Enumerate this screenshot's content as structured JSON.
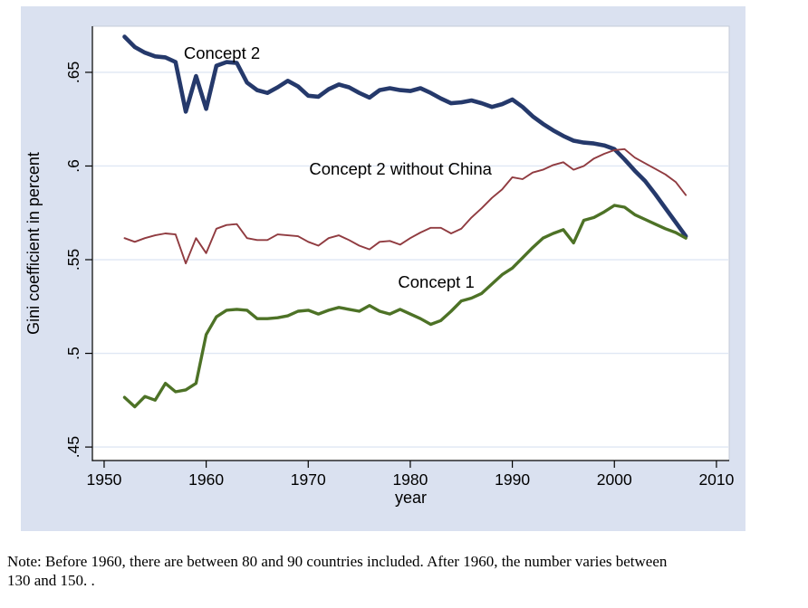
{
  "chart_data": {
    "type": "line",
    "title": "",
    "xlabel": "year",
    "ylabel": "Gini coefficient in percent",
    "x_ticks": [
      1950,
      1960,
      1970,
      1980,
      1990,
      2000,
      2010
    ],
    "x_tick_labels": [
      "1950",
      "1960",
      "1970",
      "1980",
      "1990",
      "2000",
      "2010"
    ],
    "y_tick_values": [
      0.45,
      0.5,
      0.55,
      0.6,
      0.65
    ],
    "y_tick_labels": [
      ".45",
      ".5",
      ".55",
      ".6",
      ".65"
    ],
    "xlim": [
      1948.85,
      2011.25
    ],
    "ylim": [
      0.4428,
      0.6746
    ],
    "grid": "horizontal",
    "legend": "inline-annotations",
    "background": "#dae1f0",
    "plot_background": "#ffffff",
    "gridline_color": "#dfe7f4",
    "plot_border_color": "#c4cbd8",
    "axis_color": "#000000",
    "x": [
      1952,
      1953,
      1954,
      1955,
      1956,
      1957,
      1958,
      1959,
      1960,
      1961,
      1962,
      1963,
      1964,
      1965,
      1966,
      1967,
      1968,
      1969,
      1970,
      1971,
      1972,
      1973,
      1974,
      1975,
      1976,
      1977,
      1978,
      1979,
      1980,
      1981,
      1982,
      1983,
      1984,
      1985,
      1986,
      1987,
      1988,
      1989,
      1990,
      1991,
      1992,
      1993,
      1994,
      1995,
      1996,
      1997,
      1998,
      1999,
      2000,
      2001,
      2002,
      2003,
      2004,
      2005,
      2006,
      2007
    ],
    "series": [
      {
        "name": "Concept 2",
        "color": "#25396b",
        "stroke_width": 4.6,
        "values": [
          0.669,
          0.6635,
          0.6605,
          0.6585,
          0.658,
          0.6555,
          0.629,
          0.648,
          0.6305,
          0.6535,
          0.6555,
          0.655,
          0.6445,
          0.6405,
          0.639,
          0.642,
          0.6455,
          0.6425,
          0.6375,
          0.637,
          0.641,
          0.6435,
          0.642,
          0.639,
          0.6365,
          0.6405,
          0.6415,
          0.6405,
          0.64,
          0.6415,
          0.639,
          0.636,
          0.6335,
          0.634,
          0.635,
          0.6335,
          0.6315,
          0.633,
          0.6355,
          0.6315,
          0.6265,
          0.6225,
          0.619,
          0.616,
          0.6135,
          0.6125,
          0.612,
          0.611,
          0.609,
          0.6035,
          0.5975,
          0.592,
          0.585,
          0.5775,
          0.57,
          0.5625
        ]
      },
      {
        "name": "Concept 2 without China",
        "color": "#903b40",
        "stroke_width": 1.9,
        "values": [
          0.5615,
          0.5595,
          0.5615,
          0.563,
          0.564,
          0.5635,
          0.548,
          0.5615,
          0.5535,
          0.5665,
          0.5685,
          0.569,
          0.5615,
          0.5605,
          0.5605,
          0.5635,
          0.563,
          0.5625,
          0.5595,
          0.5575,
          0.5615,
          0.563,
          0.5605,
          0.5575,
          0.5555,
          0.5595,
          0.56,
          0.558,
          0.5615,
          0.5645,
          0.567,
          0.567,
          0.564,
          0.5665,
          0.5725,
          0.5775,
          0.583,
          0.5875,
          0.594,
          0.593,
          0.5965,
          0.598,
          0.6005,
          0.602,
          0.598,
          0.6,
          0.604,
          0.6065,
          0.6085,
          0.609,
          0.6045,
          0.6015,
          0.5985,
          0.5955,
          0.5915,
          0.5845
        ]
      },
      {
        "name": "Concept 1",
        "color": "#4d7226",
        "stroke_width": 3.4,
        "values": [
          0.4765,
          0.4715,
          0.477,
          0.475,
          0.484,
          0.4795,
          0.4805,
          0.484,
          0.51,
          0.5195,
          0.523,
          0.5235,
          0.523,
          0.5185,
          0.5185,
          0.519,
          0.52,
          0.5225,
          0.523,
          0.521,
          0.523,
          0.5245,
          0.5235,
          0.5225,
          0.5255,
          0.5225,
          0.521,
          0.5235,
          0.521,
          0.5185,
          0.5155,
          0.5175,
          0.5225,
          0.528,
          0.5295,
          0.532,
          0.537,
          0.542,
          0.5455,
          0.551,
          0.5565,
          0.5615,
          0.564,
          0.566,
          0.559,
          0.571,
          0.5725,
          0.5755,
          0.579,
          0.578,
          0.574,
          0.5715,
          0.569,
          0.5665,
          0.5645,
          0.5615
        ]
      }
    ],
    "annotations": [
      {
        "label": "Concept 2",
        "x": 1957.8,
        "y": 0.6572
      },
      {
        "label": "Concept 2 without China",
        "x": 1970.1,
        "y": 0.5954
      },
      {
        "label": "Concept 1",
        "x": 1978.8,
        "y": 0.535
      }
    ]
  },
  "note": {
    "lines": [
      "Note: Before 1960, there are between 80 and 90 countries included. After 1960, the number varies between",
      "130 and 150. ."
    ]
  }
}
